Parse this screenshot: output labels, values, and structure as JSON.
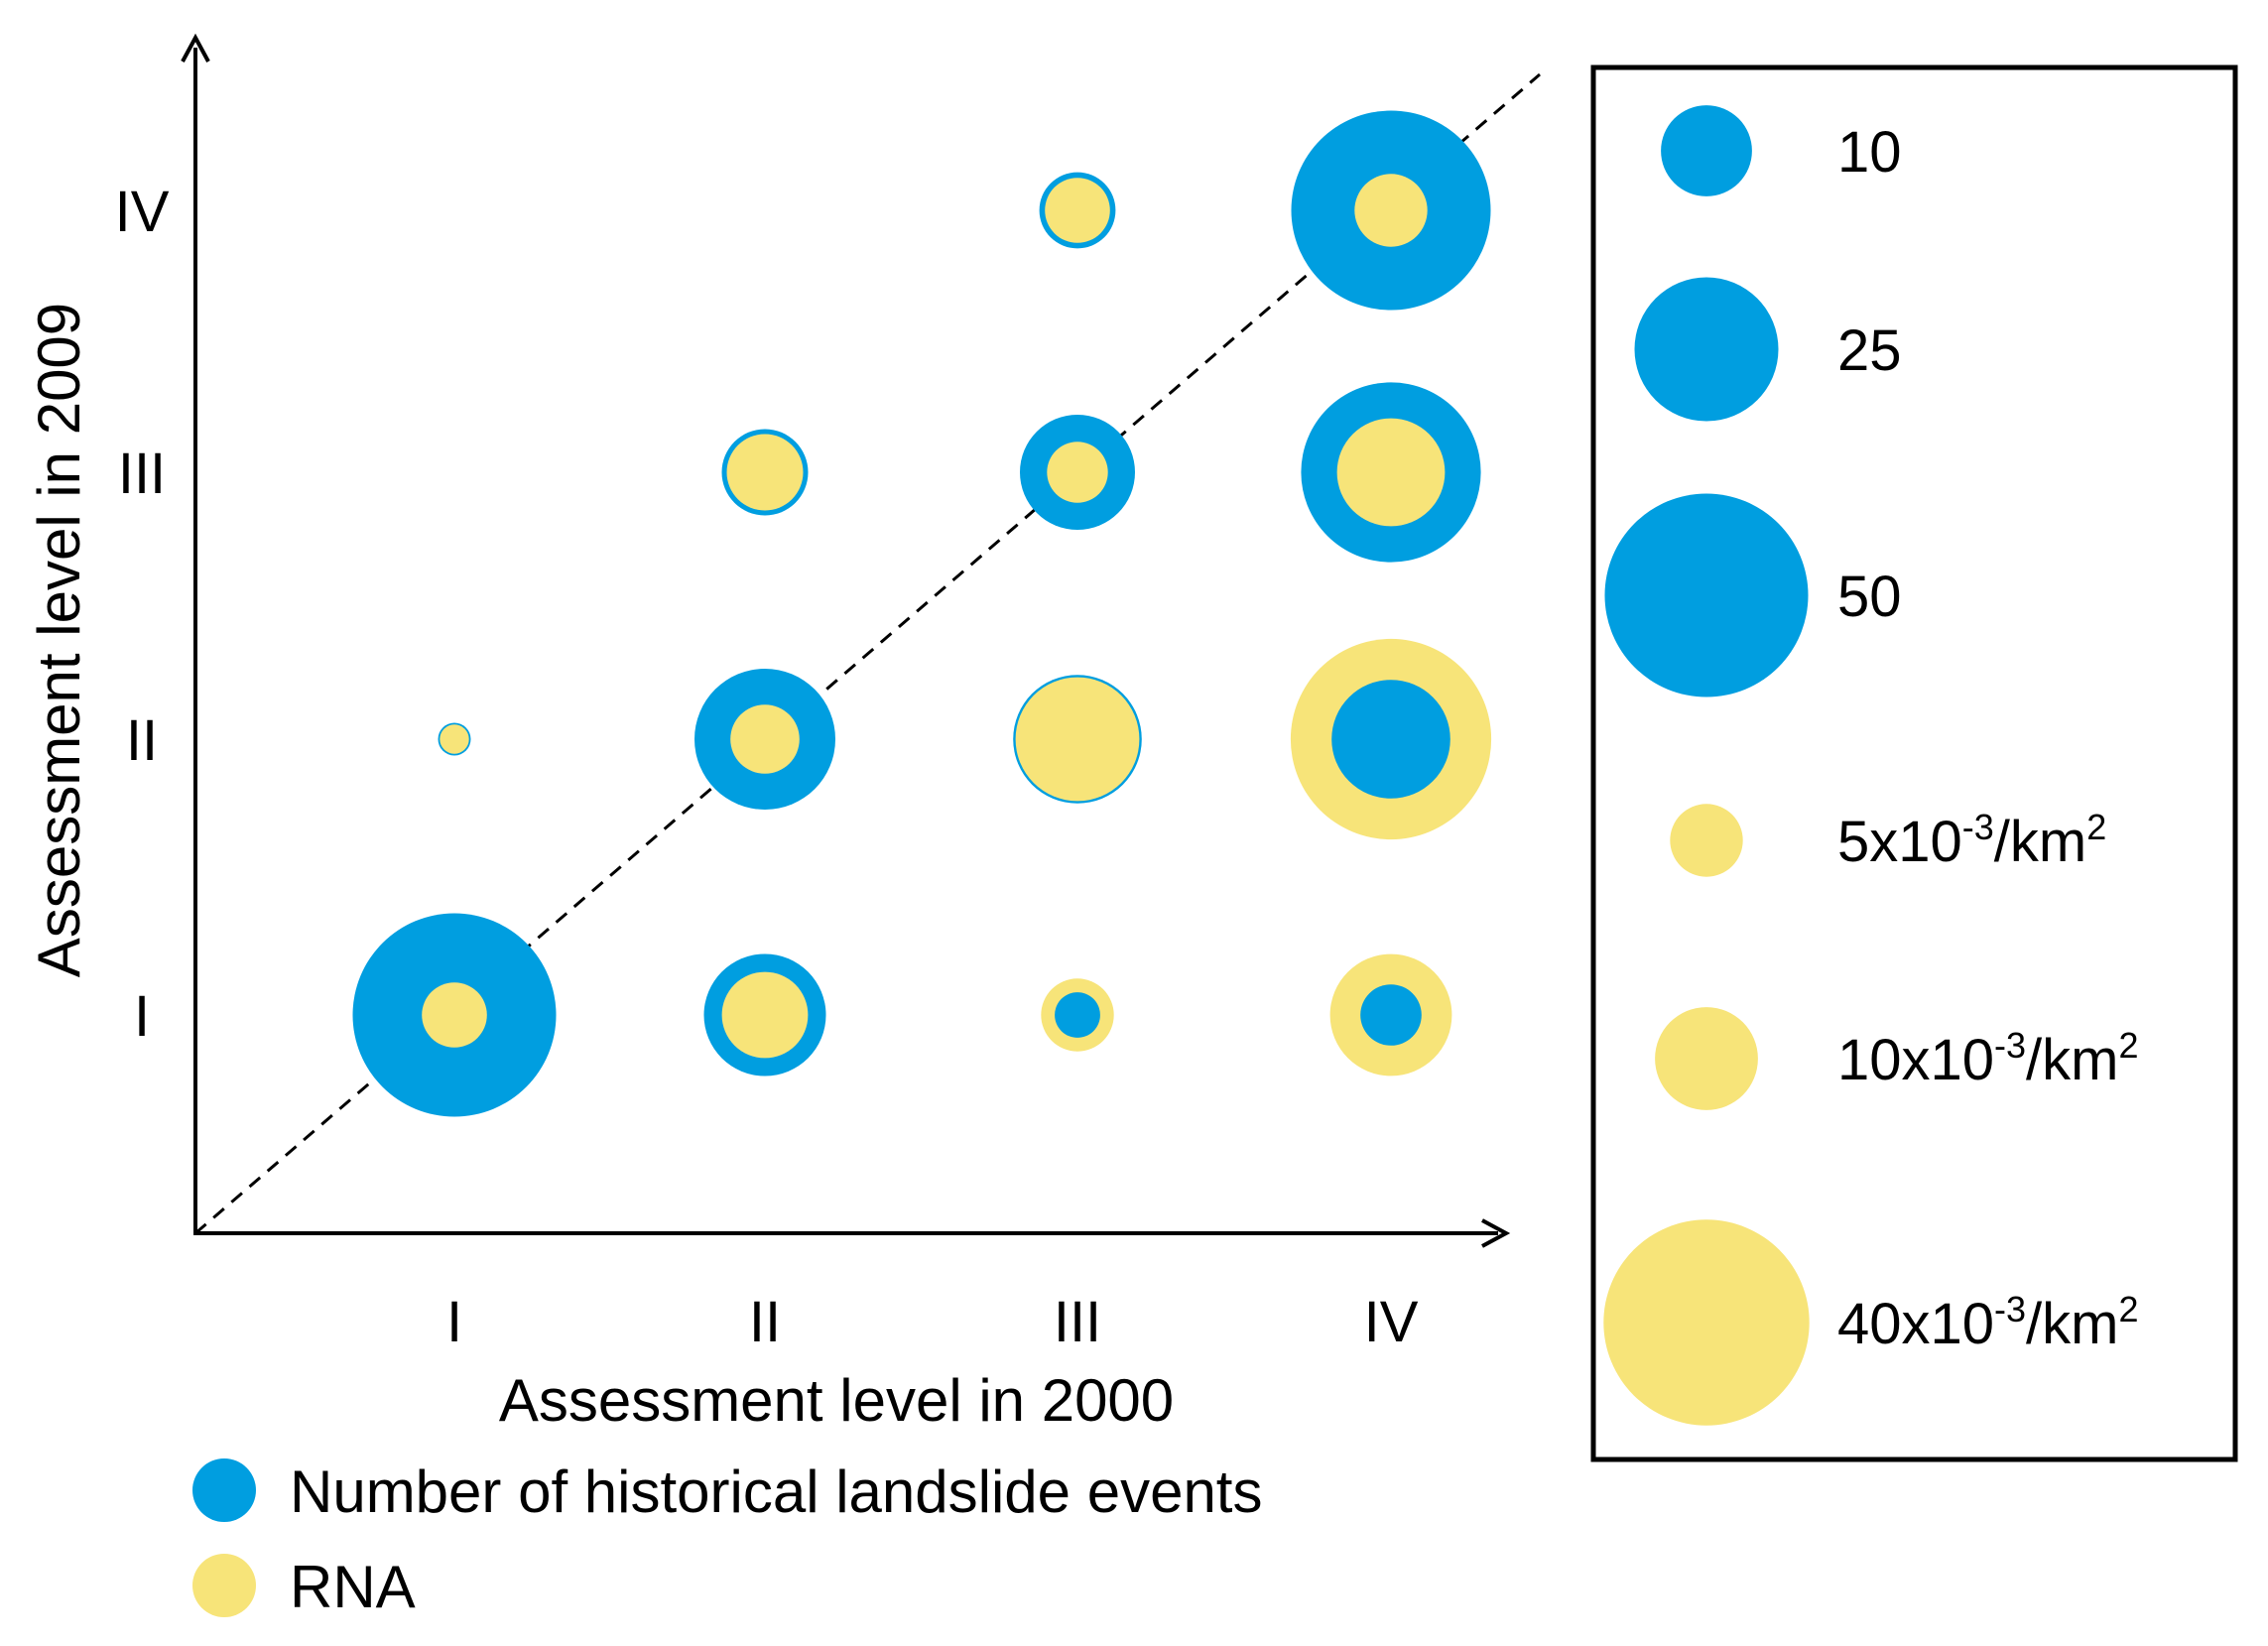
{
  "chart_data": {
    "type": "bubble-matrix",
    "xlabel": "Assessment level in 2000",
    "ylabel": "Assessment level in 2009",
    "x_categories": [
      "I",
      "II",
      "III",
      "IV"
    ],
    "y_categories": [
      "I",
      "II",
      "III",
      "IV"
    ],
    "series": [
      {
        "name": "Number of historical landslide events",
        "key": "events",
        "color": "#009ee0"
      },
      {
        "name": "RNA",
        "key": "rna",
        "color": "#f7e479"
      }
    ],
    "cells": [
      {
        "x": "I",
        "y": "I",
        "events": 50,
        "rna": 4
      },
      {
        "x": "I",
        "y": "II",
        "events": 1.3,
        "rna": 0.8
      },
      {
        "x": "II",
        "y": "I",
        "events": 18,
        "rna": 7
      },
      {
        "x": "II",
        "y": "II",
        "events": 24,
        "rna": 4.5
      },
      {
        "x": "II",
        "y": "III",
        "events": 9,
        "rna": 5.5
      },
      {
        "x": "III",
        "y": "I",
        "events": 2.5,
        "rna": 5
      },
      {
        "x": "III",
        "y": "II",
        "events": 20,
        "rna": 14.5
      },
      {
        "x": "III",
        "y": "III",
        "events": 16,
        "rna": 3.5
      },
      {
        "x": "III",
        "y": "IV",
        "events": 7,
        "rna": 4
      },
      {
        "x": "IV",
        "y": "I",
        "events": 4.5,
        "rna": 14
      },
      {
        "x": "IV",
        "y": "II",
        "events": 17,
        "rna": 38
      },
      {
        "x": "IV",
        "y": "III",
        "events": 39,
        "rna": 11
      },
      {
        "x": "IV",
        "y": "IV",
        "events": 48,
        "rna": 5
      }
    ],
    "size_legend": {
      "events": [
        {
          "value": 10,
          "label": "10"
        },
        {
          "value": 25,
          "label": "25"
        },
        {
          "value": 50,
          "label": "50"
        }
      ],
      "rna": [
        {
          "value": 5,
          "mantissa": "5x10",
          "exponent": "-3",
          "unit": "/km",
          "unit_exp": "2"
        },
        {
          "value": 10,
          "mantissa": "10x10",
          "exponent": "-3",
          "unit": "/km",
          "unit_exp": "2"
        },
        {
          "value": 40,
          "mantissa": "40x10",
          "exponent": "-3",
          "unit": "/km",
          "unit_exp": "2"
        }
      ]
    },
    "diagonal_reference_line": true,
    "grid": false
  }
}
